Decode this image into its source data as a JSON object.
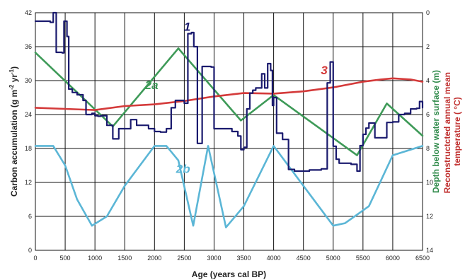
{
  "chart_data": {
    "type": "line",
    "title": "",
    "xlabel": "Age (years cal BP)",
    "ylabel_left": "Carbon accumulation (g m⁻² yr⁻¹)",
    "ylabel_left_parts": [
      "Carbon accumulation (g m",
      "-2",
      " yr",
      "-1",
      ")"
    ],
    "ylabel_right_1": "Depth below water surface (m)",
    "ylabel_right_2_line1": "Reconstructcted annual mean",
    "ylabel_right_2_line2": "temperature (  °C)",
    "xlim": [
      0,
      6500
    ],
    "ylim_left": [
      0,
      42
    ],
    "ylim_right": [
      0,
      14
    ],
    "right_axis_inverted": true,
    "x_ticks": [
      {
        "value": 0,
        "label": "0"
      },
      {
        "value": 500,
        "label": "500"
      },
      {
        "value": 1000,
        "label": "1000"
      },
      {
        "value": 1500,
        "label": "1500"
      },
      {
        "value": 2000,
        "label": "2000"
      },
      {
        "value": 2500,
        "label": "2500"
      },
      {
        "value": 3000,
        "label": "3000"
      },
      {
        "value": 3500,
        "label": "3500"
      },
      {
        "value": 4000,
        "label": "4000"
      },
      {
        "value": 4500,
        "label": "4500"
      },
      {
        "value": 5000,
        "label": "5000"
      },
      {
        "value": 5500,
        "label": "5500"
      },
      {
        "value": 6000,
        "label": "6000"
      },
      {
        "value": 6500,
        "label": "6500"
      }
    ],
    "y_ticks_left": [
      {
        "value": 0,
        "label": "0"
      },
      {
        "value": 6,
        "label": "6"
      },
      {
        "value": 12,
        "label": "12"
      },
      {
        "value": 18,
        "label": "18"
      },
      {
        "value": 24,
        "label": "24"
      },
      {
        "value": 30,
        "label": "30"
      },
      {
        "value": 36,
        "label": "36"
      },
      {
        "value": 42,
        "label": "42"
      }
    ],
    "y_ticks_right": [
      {
        "value": 0,
        "label": "0"
      },
      {
        "value": 2,
        "label": "2"
      },
      {
        "value": 4,
        "label": "4"
      },
      {
        "value": 6,
        "label": "6"
      },
      {
        "value": 8,
        "label": "8"
      },
      {
        "value": 10,
        "label": "10"
      },
      {
        "value": 12,
        "label": "12"
      },
      {
        "value": 14,
        "label": "14"
      }
    ],
    "grid": true,
    "series": [
      {
        "name": "1",
        "label_at": [
          2550,
          38.8
        ],
        "color": "#1a1a6e",
        "axis": "left",
        "step": true,
        "x": [
          0,
          250,
          300,
          350,
          450,
          480,
          530,
          560,
          620,
          700,
          800,
          850,
          950,
          1000,
          1050,
          1100,
          1200,
          1300,
          1400,
          1500,
          1600,
          1700,
          1800,
          1900,
          2000,
          2100,
          2200,
          2280,
          2350,
          2500,
          2560,
          2620,
          2660,
          2720,
          2800,
          2950,
          3000,
          3200,
          3300,
          3400,
          3450,
          3500,
          3550,
          3600,
          3650,
          3700,
          3800,
          3850,
          3900,
          3950,
          3980,
          4000,
          4050,
          4150,
          4250,
          4350,
          4450,
          4600,
          4800,
          4900,
          4950,
          5000,
          5050,
          5100,
          5300,
          5400,
          5450,
          5500,
          5550,
          5600,
          5700,
          5800,
          5900,
          6000,
          6100,
          6200,
          6300,
          6400,
          6450,
          6500
        ],
        "values": [
          40.5,
          40.3,
          42,
          35,
          34.9,
          40.5,
          37.8,
          28.5,
          27.9,
          27.5,
          26.5,
          24,
          24.2,
          23.8,
          23.7,
          23.8,
          22.1,
          19.7,
          21.5,
          21.5,
          23.1,
          22.1,
          22.1,
          21.5,
          21,
          20.9,
          21.5,
          25.2,
          26.5,
          26,
          38.3,
          38.5,
          36,
          18.9,
          32.5,
          32.4,
          21.5,
          21.5,
          21,
          20.2,
          17.8,
          18.2,
          25,
          27.8,
          28.3,
          28.7,
          31.2,
          28.7,
          33,
          31.8,
          25.6,
          27,
          20.7,
          19.6,
          14.3,
          14,
          14,
          14.2,
          14.4,
          29.6,
          33.3,
          18.4,
          16.1,
          15.4,
          15.2,
          14,
          18.5,
          20.5,
          21.6,
          22.5,
          19.9,
          19.9,
          22.6,
          22.7,
          24,
          24.2,
          25,
          25.1,
          26.3,
          25.2
        ]
      },
      {
        "name": "2a",
        "label_at": [
          1950,
          28.5
        ],
        "color": "#3e9a58",
        "axis": "right",
        "x": [
          0,
          1300,
          2400,
          3450,
          4000,
          5400,
          5900,
          6500
        ],
        "values": [
          2.35,
          6.7,
          2.1,
          6.35,
          4.85,
          8.4,
          5.35,
          7.25
        ]
      },
      {
        "name": "2b",
        "label_at": [
          2480,
          13.7
        ],
        "color": "#5bb6d6",
        "axis": "right",
        "x": [
          0,
          300,
          500,
          700,
          950,
          1200,
          1500,
          2000,
          2200,
          2400,
          2650,
          2900,
          3200,
          3500,
          4000,
          4500,
          5000,
          5200,
          5600,
          6000,
          6500
        ],
        "values": [
          7.85,
          7.85,
          9,
          11,
          12.55,
          12,
          10.2,
          7.85,
          7.85,
          8.7,
          12.55,
          7.85,
          12.65,
          11.4,
          7.85,
          10.2,
          12.55,
          12.4,
          11.4,
          8.4,
          7.85
        ]
      },
      {
        "name": "3",
        "label_at": [
          4850,
          31.1
        ],
        "color": "#d43a3a",
        "axis": "left",
        "x": [
          0,
          500,
          1000,
          1500,
          2000,
          2500,
          3000,
          3500,
          4000,
          4500,
          5000,
          5500,
          5800,
          6000,
          6300,
          6500
        ],
        "values": [
          25.2,
          25,
          24.8,
          25.5,
          25.8,
          26.4,
          27.2,
          27.8,
          27.7,
          28.1,
          28.8,
          29.8,
          30.2,
          30.4,
          30.2,
          29.8
        ]
      }
    ]
  }
}
